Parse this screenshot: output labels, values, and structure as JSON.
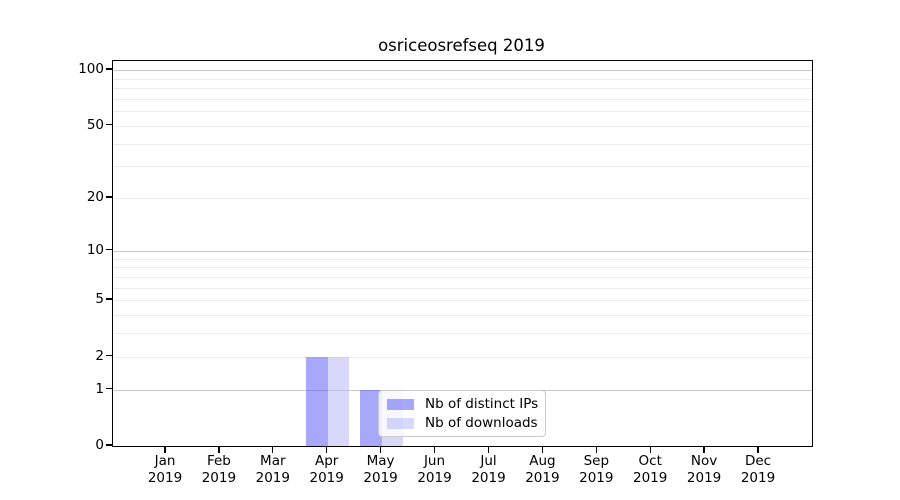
{
  "title": "osriceosrefseq 2019",
  "chart_data": {
    "type": "bar",
    "categories": [
      "Jan 2019",
      "Feb 2019",
      "Mar 2019",
      "Apr 2019",
      "May 2019",
      "Jun 2019",
      "Jul 2019",
      "Aug 2019",
      "Sep 2019",
      "Oct 2019",
      "Nov 2019",
      "Dec 2019"
    ],
    "month_lines": [
      [
        "Jan",
        "2019"
      ],
      [
        "Feb",
        "2019"
      ],
      [
        "Mar",
        "2019"
      ],
      [
        "Apr",
        "2019"
      ],
      [
        "May",
        "2019"
      ],
      [
        "Jun",
        "2019"
      ],
      [
        "Jul",
        "2019"
      ],
      [
        "Aug",
        "2019"
      ],
      [
        "Sep",
        "2019"
      ],
      [
        "Oct",
        "2019"
      ],
      [
        "Nov",
        "2019"
      ],
      [
        "Dec",
        "2019"
      ]
    ],
    "series": [
      {
        "name": "Nb of distinct IPs",
        "values": [
          0,
          0,
          0,
          2,
          1,
          0,
          0,
          0,
          0,
          0,
          0,
          0
        ],
        "color": "rgba(81,81,245,0.5)"
      },
      {
        "name": "Nb of downloads",
        "values": [
          0,
          0,
          0,
          2,
          1,
          0,
          0,
          0,
          0,
          0,
          0,
          0
        ],
        "color": "rgba(177,177,245,0.5)"
      }
    ],
    "title": "osriceosrefseq 2019",
    "xlabel": "",
    "ylabel": "",
    "yscale": "log1p",
    "ylim": [
      0,
      112
    ],
    "yticks": [
      0,
      1,
      2,
      5,
      10,
      20,
      50,
      100
    ],
    "major_gridlines": [
      1,
      10,
      100
    ],
    "minor_gridlines": [
      2,
      3,
      4,
      5,
      6,
      7,
      8,
      9,
      20,
      30,
      40,
      50,
      60,
      70,
      80,
      90
    ],
    "grid": "horizontal-only",
    "legend_position": "lower-center-inside"
  },
  "legend": {
    "items": [
      {
        "label": "Nb of distinct IPs",
        "color": "rgba(81,81,245,0.5)"
      },
      {
        "label": "Nb of downloads",
        "color": "rgba(177,177,245,0.5)"
      }
    ]
  },
  "colors": {
    "background": "#ffffff",
    "axis": "#000000",
    "major_grid": "#c9c9c9",
    "minor_grid": "#ececec",
    "bar_distinct_ips": "rgba(81,81,245,0.5)",
    "bar_downloads": "rgba(177,177,245,0.5)"
  }
}
